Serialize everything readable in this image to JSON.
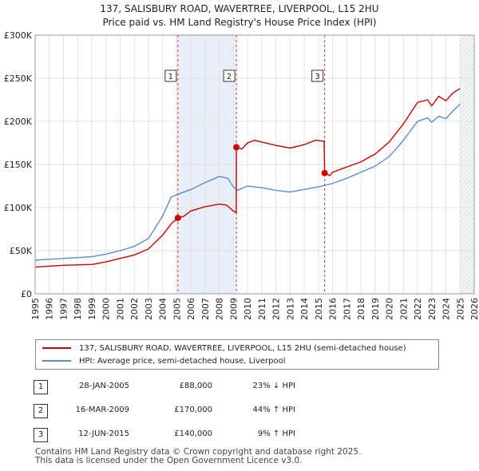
{
  "chart_data": {
    "type": "line",
    "title": "137, SALISBURY ROAD, WAVERTREE, LIVERPOOL, L15 2HU",
    "subtitle": "Price paid vs. HM Land Registry's House Price Index (HPI)",
    "xlim": [
      1995,
      2026
    ],
    "ylim": [
      0,
      300000
    ],
    "x_ticks": [
      "1995",
      "1996",
      "1997",
      "1998",
      "1999",
      "2000",
      "2001",
      "2002",
      "2003",
      "2004",
      "2005",
      "2006",
      "2007",
      "2008",
      "2009",
      "2010",
      "2011",
      "2012",
      "2013",
      "2014",
      "2015",
      "2016",
      "2017",
      "2018",
      "2019",
      "2020",
      "2021",
      "2022",
      "2023",
      "2024",
      "2025",
      "2026"
    ],
    "y_ticks": [
      {
        "value": 0,
        "label": "£0"
      },
      {
        "value": 50000,
        "label": "£50K"
      },
      {
        "value": 100000,
        "label": "£100K"
      },
      {
        "value": 150000,
        "label": "£150K"
      },
      {
        "value": 200000,
        "label": "£200K"
      },
      {
        "value": 250000,
        "label": "£250K"
      },
      {
        "value": 300000,
        "label": "£300K"
      }
    ],
    "forecast_from": 2025.0,
    "series": [
      {
        "name": "137, SALISBURY ROAD, WAVERTREE, LIVERPOOL, L15 2HU (semi-detached house)",
        "color": "#cc0000",
        "points": [
          [
            1995.0,
            31000
          ],
          [
            1996.0,
            32000
          ],
          [
            1997.0,
            33000
          ],
          [
            1998.0,
            33500
          ],
          [
            1999.0,
            34000
          ],
          [
            2000.0,
            37000
          ],
          [
            2001.0,
            41000
          ],
          [
            2002.0,
            45000
          ],
          [
            2003.0,
            52000
          ],
          [
            2004.0,
            68000
          ],
          [
            2004.6,
            81000
          ],
          [
            2005.08,
            88000
          ],
          [
            2005.5,
            90000
          ],
          [
            2006.0,
            96000
          ],
          [
            2007.0,
            101000
          ],
          [
            2008.0,
            104000
          ],
          [
            2008.5,
            103000
          ],
          [
            2009.0,
            96000
          ],
          [
            2009.2,
            94000
          ],
          [
            2009.21,
            170000
          ],
          [
            2009.6,
            168000
          ],
          [
            2010.0,
            175000
          ],
          [
            2010.5,
            178000
          ],
          [
            2011.0,
            176000
          ],
          [
            2012.0,
            172000
          ],
          [
            2013.0,
            169000
          ],
          [
            2014.0,
            173000
          ],
          [
            2014.8,
            178000
          ],
          [
            2015.4,
            177000
          ],
          [
            2015.44,
            140000
          ],
          [
            2015.8,
            137000
          ],
          [
            2016.0,
            141000
          ],
          [
            2017.0,
            147000
          ],
          [
            2018.0,
            153000
          ],
          [
            2019.0,
            162000
          ],
          [
            2020.0,
            176000
          ],
          [
            2021.0,
            197000
          ],
          [
            2022.0,
            222000
          ],
          [
            2022.7,
            225000
          ],
          [
            2023.0,
            218000
          ],
          [
            2023.5,
            229000
          ],
          [
            2024.0,
            224000
          ],
          [
            2024.5,
            233000
          ],
          [
            2025.0,
            238000
          ]
        ]
      },
      {
        "name": "HPI: Average price, semi-detached house, Liverpool",
        "color": "#5b8cc8",
        "points": [
          [
            1995.0,
            39000
          ],
          [
            1996.0,
            40000
          ],
          [
            1997.0,
            41000
          ],
          [
            1998.0,
            42000
          ],
          [
            1999.0,
            43000
          ],
          [
            2000.0,
            46000
          ],
          [
            2001.0,
            50000
          ],
          [
            2002.0,
            55000
          ],
          [
            2003.0,
            64000
          ],
          [
            2004.0,
            90000
          ],
          [
            2004.6,
            112000
          ],
          [
            2005.0,
            115000
          ],
          [
            2006.0,
            121000
          ],
          [
            2007.0,
            129000
          ],
          [
            2008.0,
            136000
          ],
          [
            2008.6,
            134000
          ],
          [
            2009.0,
            124000
          ],
          [
            2009.3,
            120000
          ],
          [
            2010.0,
            125000
          ],
          [
            2011.0,
            123000
          ],
          [
            2012.0,
            120000
          ],
          [
            2013.0,
            118000
          ],
          [
            2014.0,
            121000
          ],
          [
            2015.0,
            124000
          ],
          [
            2015.5,
            126000
          ],
          [
            2016.0,
            128000
          ],
          [
            2017.0,
            134000
          ],
          [
            2018.0,
            141000
          ],
          [
            2019.0,
            148000
          ],
          [
            2020.0,
            159000
          ],
          [
            2021.0,
            178000
          ],
          [
            2022.0,
            200000
          ],
          [
            2022.7,
            204000
          ],
          [
            2023.0,
            199000
          ],
          [
            2023.5,
            206000
          ],
          [
            2024.0,
            203000
          ],
          [
            2024.5,
            212000
          ],
          [
            2025.0,
            220000
          ]
        ]
      }
    ],
    "transactions": [
      {
        "n": "1",
        "x": 2005.08,
        "y": 88000,
        "date": "28-JAN-2005",
        "price": "£88,000",
        "hpi": "23% ↓ HPI"
      },
      {
        "n": "2",
        "x": 2009.21,
        "y": 170000,
        "date": "16-MAR-2009",
        "price": "£170,000",
        "hpi": "44% ↑ HPI"
      },
      {
        "n": "3",
        "x": 2015.44,
        "y": 140000,
        "date": "12-JUN-2015",
        "price": "£140,000",
        "hpi": "9% ↑ HPI"
      }
    ]
  },
  "colors": {
    "property": "#cc0000",
    "hpi": "#5b8cc8",
    "shade": "#e8eef8",
    "grid": "#e2e2e2",
    "vline": "#dd3333"
  },
  "footer": {
    "line1": "Contains HM Land Registry data © Crown copyright and database right 2025.",
    "line2": "This data is licensed under the Open Government Licence v3.0."
  }
}
